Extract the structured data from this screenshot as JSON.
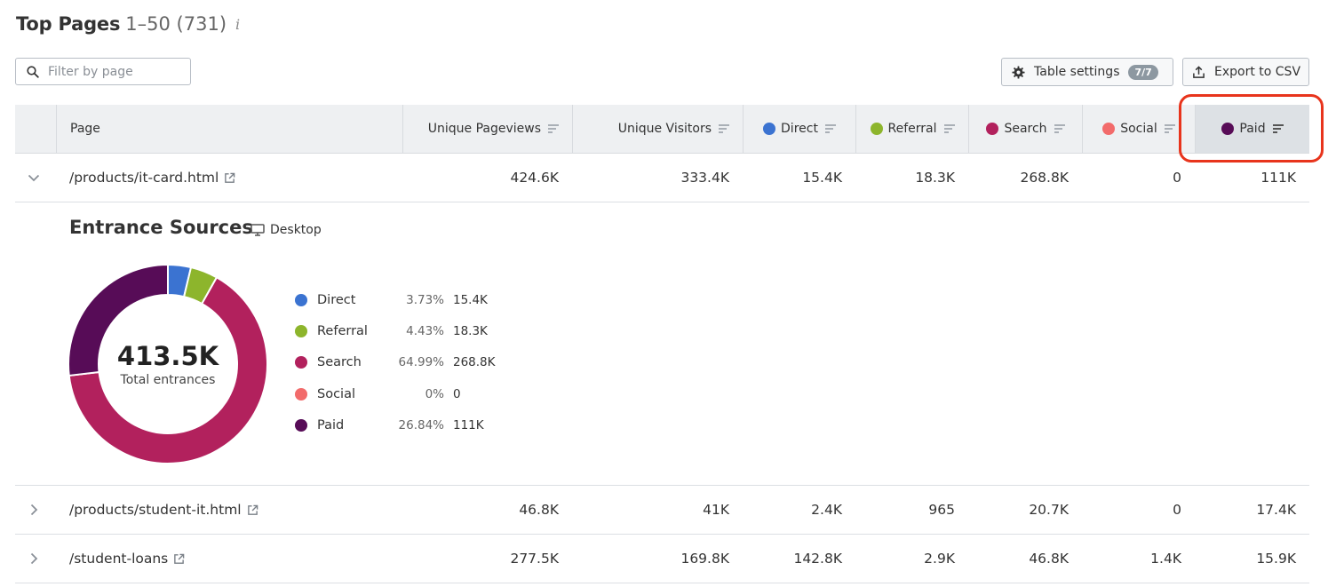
{
  "header": {
    "title": "Top Pages",
    "range": "1–50 (731)",
    "info_icon": "i"
  },
  "filter": {
    "placeholder": "Filter by page",
    "value": ""
  },
  "toolbar": {
    "table_settings_label": "Table settings",
    "table_settings_badge": "7/7",
    "export_label": "Export to CSV"
  },
  "columns": {
    "page": "Page",
    "unique_pageviews": "Unique Pageviews",
    "unique_visitors": "Unique Visitors",
    "direct": "Direct",
    "referral": "Referral",
    "search": "Search",
    "social": "Social",
    "paid": "Paid"
  },
  "colors": {
    "direct": "#3b73d1",
    "referral": "#8db52c",
    "search": "#b2215d",
    "social": "#f26b6b",
    "paid": "#570c57",
    "annotation": "#e8341c"
  },
  "rows": [
    {
      "page": "/products/it-card.html",
      "unique_pageviews": "424.6K",
      "unique_visitors": "333.4K",
      "direct": "15.4K",
      "referral": "18.3K",
      "search": "268.8K",
      "social": "0",
      "paid": "111K",
      "expanded": true
    },
    {
      "page": "/products/student-it.html",
      "unique_pageviews": "46.8K",
      "unique_visitors": "41K",
      "direct": "2.4K",
      "referral": "965",
      "search": "20.7K",
      "social": "0",
      "paid": "17.4K",
      "expanded": false
    },
    {
      "page": "/student-loans",
      "unique_pageviews": "277.5K",
      "unique_visitors": "169.8K",
      "direct": "142.8K",
      "referral": "2.9K",
      "search": "46.8K",
      "social": "1.4K",
      "paid": "15.9K",
      "expanded": false
    }
  ],
  "entrance_sources": {
    "title": "Entrance Sources",
    "device": "Desktop",
    "total_value": "413.5K",
    "total_label": "Total entrances"
  },
  "chart_data": {
    "type": "pie",
    "categories": [
      "Direct",
      "Referral",
      "Search",
      "Social",
      "Paid"
    ],
    "values": [
      3.73,
      4.43,
      64.99,
      0,
      26.84
    ],
    "percent_labels": [
      "3.73%",
      "4.43%",
      "64.99%",
      "0%",
      "26.84%"
    ],
    "value_labels": [
      "15.4K",
      "18.3K",
      "268.8K",
      "0",
      "111K"
    ],
    "colors": [
      "#3b73d1",
      "#8db52c",
      "#b2215d",
      "#f26b6b",
      "#570c57"
    ]
  }
}
